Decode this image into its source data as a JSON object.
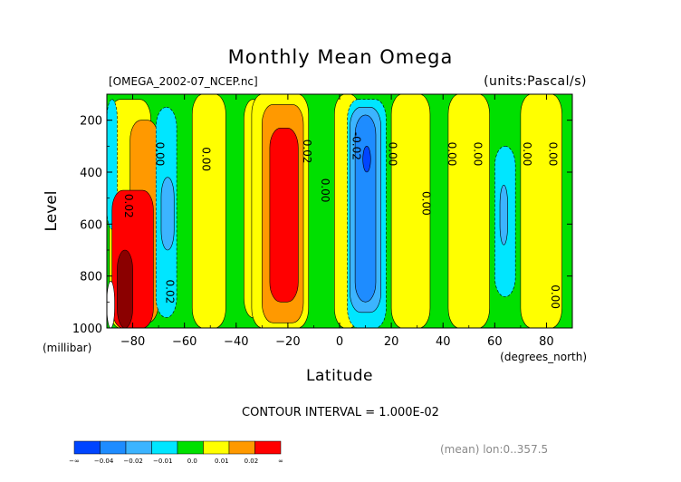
{
  "chart_data": {
    "type": "contour",
    "title": "Monthly Mean Omega",
    "file_label": "[OMEGA_2002-07_NCEP.nc]",
    "units_label": "(units:Pascal/s)",
    "ylabel": "Level",
    "yunits": "(millibar)",
    "xlabel": "Latitude",
    "xunits": "(degrees_north)",
    "contour_interval": "CONTOUR INTERVAL = 1.000E-02",
    "mean_note": "(mean) lon:0..357.5",
    "xlim": [
      -90,
      90
    ],
    "ylim": [
      1000,
      100
    ],
    "y_inverted": true,
    "x_ticks": [
      "-80",
      "-60",
      "-40",
      "-20",
      "0",
      "20",
      "40",
      "60",
      "80"
    ],
    "y_ticks": [
      "200",
      "400",
      "600",
      "800",
      "1000"
    ],
    "background_color": "#00e000",
    "bands": [
      {
        "range": "< -0.04",
        "color": "#0045ff"
      },
      {
        "range": "-0.04 to -0.02",
        "color": "#1e8cff"
      },
      {
        "range": "-0.02 to -0.01",
        "color": "#3cb4ff"
      },
      {
        "range": "-0.01 to 0.0",
        "color": "#00e6ff"
      },
      {
        "range": "0.0 to 0.01",
        "color": "#00e000"
      },
      {
        "range": "0.01 to 0.02",
        "color": "#ffff00"
      },
      {
        "range": "0.02 to ∞",
        "color": "#ff9900"
      },
      {
        "range": "highest",
        "color": "#ff0000"
      }
    ],
    "regions": [
      {
        "name": "polar-yellow",
        "color": "#ffff00",
        "lat": [
          -89,
          -73
        ],
        "lev": [
          120,
          1000
        ]
      },
      {
        "name": "polar-cyan-strip",
        "color": "#00e6ff",
        "lat": [
          -90,
          -86
        ],
        "lev": [
          120,
          620
        ]
      },
      {
        "name": "sh-orange",
        "color": "#ff9900",
        "lat": [
          -81,
          -70
        ],
        "lev": [
          200,
          980
        ]
      },
      {
        "name": "sh-red",
        "color": "#ff0000",
        "lat": [
          -88,
          -72
        ],
        "lev": [
          470,
          1000
        ]
      },
      {
        "name": "sh-dark-red",
        "color": "#8b0000",
        "lat": [
          -86,
          -80
        ],
        "lev": [
          700,
          1000
        ]
      },
      {
        "name": "sh-white-gap",
        "color": "#ffffff",
        "lat": [
          -90,
          -87
        ],
        "lev": [
          820,
          1000
        ]
      },
      {
        "name": "sh-cyan",
        "color": "#00e6ff",
        "lat": [
          -71,
          -63
        ],
        "lev": [
          150,
          960
        ]
      },
      {
        "name": "sh-blue",
        "color": "#3cb4ff",
        "lat": [
          -69,
          -64
        ],
        "lev": [
          420,
          700
        ]
      },
      {
        "name": "sh-yellow-1",
        "color": "#ffff00",
        "lat": [
          -57,
          -44
        ],
        "lev": [
          100,
          1000
        ]
      },
      {
        "name": "sh-yellow-2",
        "color": "#ffff00",
        "lat": [
          -37,
          -30
        ],
        "lev": [
          120,
          960
        ]
      },
      {
        "name": "st-yellow",
        "color": "#ffff00",
        "lat": [
          -34,
          -12
        ],
        "lev": [
          100,
          1000
        ]
      },
      {
        "name": "st-orange",
        "color": "#ff9900",
        "lat": [
          -30,
          -14
        ],
        "lev": [
          140,
          980
        ]
      },
      {
        "name": "st-red",
        "color": "#ff0000",
        "lat": [
          -27,
          -16
        ],
        "lev": [
          230,
          900
        ]
      },
      {
        "name": "eq-yellow",
        "color": "#ffff00",
        "lat": [
          -2,
          8
        ],
        "lev": [
          100,
          1000
        ]
      },
      {
        "name": "itcz-cyan",
        "color": "#00e6ff",
        "lat": [
          3,
          18
        ],
        "lev": [
          120,
          1000
        ]
      },
      {
        "name": "itcz-lightblue",
        "color": "#3cb4ff",
        "lat": [
          4,
          16
        ],
        "lev": [
          150,
          940
        ]
      },
      {
        "name": "itcz-blue",
        "color": "#1e8cff",
        "lat": [
          6,
          14
        ],
        "lev": [
          180,
          900
        ]
      },
      {
        "name": "itcz-core",
        "color": "#0045ff",
        "lat": [
          9,
          12
        ],
        "lev": [
          300,
          400
        ]
      },
      {
        "name": "nh-yellow-1",
        "color": "#ffff00",
        "lat": [
          20,
          35
        ],
        "lev": [
          100,
          1000
        ]
      },
      {
        "name": "nh-yellow-2",
        "color": "#ffff00",
        "lat": [
          42,
          58
        ],
        "lev": [
          100,
          1000
        ]
      },
      {
        "name": "nh-cyan",
        "color": "#00e6ff",
        "lat": [
          60,
          68
        ],
        "lev": [
          300,
          880
        ]
      },
      {
        "name": "nh-blue",
        "color": "#3cb4ff",
        "lat": [
          62,
          65
        ],
        "lev": [
          450,
          680
        ]
      },
      {
        "name": "nh-yellow-3",
        "color": "#ffff00",
        "lat": [
          70,
          86
        ],
        "lev": [
          100,
          1000
        ]
      }
    ],
    "contour_labels": [
      {
        "text": "0.00",
        "lat": -71,
        "lev": 330
      },
      {
        "text": "0.02",
        "lat": -83,
        "lev": 530
      },
      {
        "text": "0.02",
        "lat": -67,
        "lev": 860
      },
      {
        "text": "0.00",
        "lat": -53,
        "lev": 350
      },
      {
        "text": "0.02",
        "lat": -14,
        "lev": 320
      },
      {
        "text": "0.00",
        "lat": -7,
        "lev": 470
      },
      {
        "text": "-0.02",
        "lat": 5,
        "lev": 300
      },
      {
        "text": "0.00",
        "lat": 19,
        "lev": 330
      },
      {
        "text": "0.00",
        "lat": 32,
        "lev": 520
      },
      {
        "text": "0.00",
        "lat": 42,
        "lev": 330
      },
      {
        "text": "0.00",
        "lat": 52,
        "lev": 330
      },
      {
        "text": "0.00",
        "lat": 71,
        "lev": 330
      },
      {
        "text": "0.00",
        "lat": 81,
        "lev": 330
      },
      {
        "text": "0.00",
        "lat": 82,
        "lev": 880
      }
    ],
    "colorbar": {
      "colors": [
        "#0045ff",
        "#1e8cff",
        "#3cb4ff",
        "#00e6ff",
        "#00e000",
        "#ffff00",
        "#ff9900",
        "#ff0000"
      ],
      "labels": [
        "-∞",
        "-0.04",
        "-0.02",
        "-0.01",
        "0.0",
        "0.01",
        "0.02",
        "∞"
      ]
    }
  }
}
